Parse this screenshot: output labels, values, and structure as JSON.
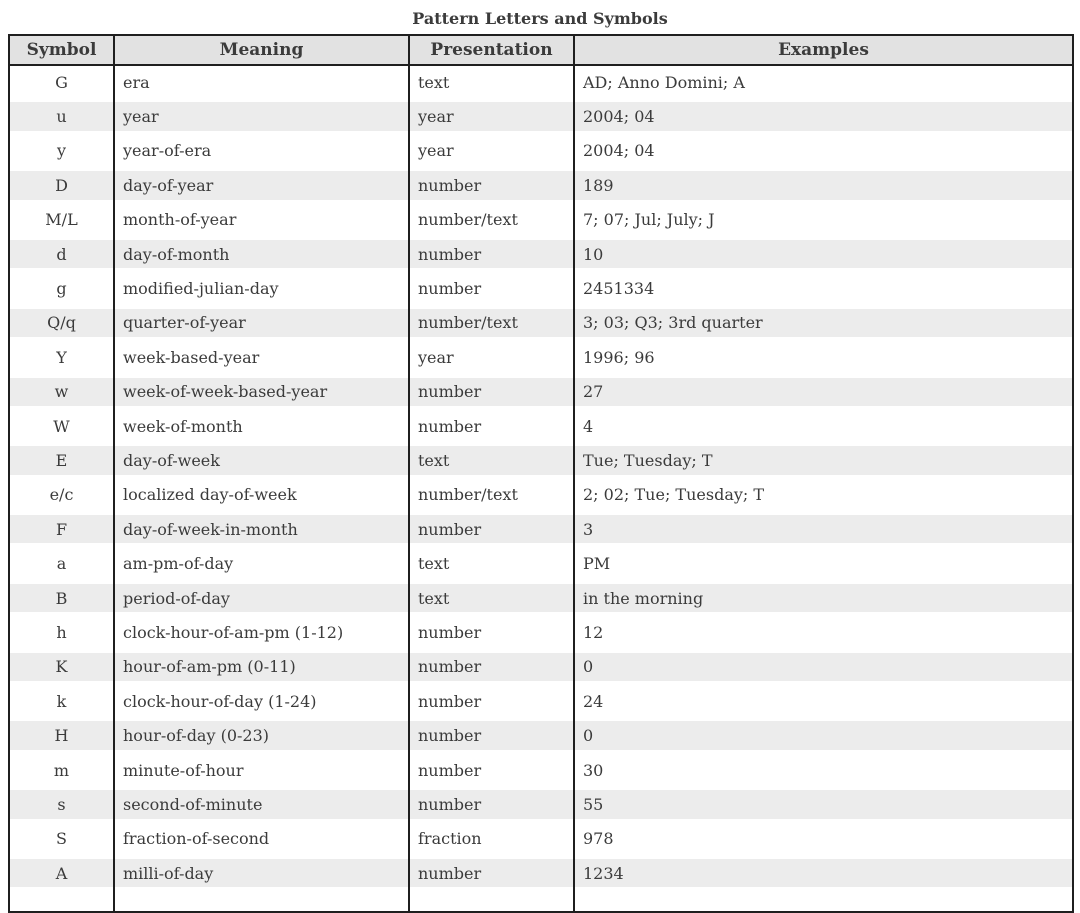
{
  "title": "Pattern Letters and Symbols",
  "colors": {
    "border": "#1f1f1f",
    "header_bg": "#e2e2e2",
    "alt_row_bg": "#ececec",
    "text": "#3b3b3b"
  },
  "table": {
    "columns": [
      "Symbol",
      "Meaning",
      "Presentation",
      "Examples"
    ],
    "rows": [
      {
        "symbol": "G",
        "meaning": "era",
        "presentation": "text",
        "examples": "AD; Anno Domini; A"
      },
      {
        "symbol": "u",
        "meaning": "year",
        "presentation": "year",
        "examples": "2004; 04"
      },
      {
        "symbol": "y",
        "meaning": "year-of-era",
        "presentation": "year",
        "examples": "2004; 04"
      },
      {
        "symbol": "D",
        "meaning": "day-of-year",
        "presentation": "number",
        "examples": "189"
      },
      {
        "symbol": "M/L",
        "meaning": "month-of-year",
        "presentation": "number/text",
        "examples": "7; 07; Jul; July; J"
      },
      {
        "symbol": "d",
        "meaning": "day-of-month",
        "presentation": "number",
        "examples": "10"
      },
      {
        "symbol": "g",
        "meaning": "modified-julian-day",
        "presentation": "number",
        "examples": "2451334"
      },
      {
        "symbol": "Q/q",
        "meaning": "quarter-of-year",
        "presentation": "number/text",
        "examples": "3; 03; Q3; 3rd quarter"
      },
      {
        "symbol": "Y",
        "meaning": "week-based-year",
        "presentation": "year",
        "examples": "1996; 96"
      },
      {
        "symbol": "w",
        "meaning": "week-of-week-based-year",
        "presentation": "number",
        "examples": "27"
      },
      {
        "symbol": "W",
        "meaning": "week-of-month",
        "presentation": "number",
        "examples": "4"
      },
      {
        "symbol": "E",
        "meaning": "day-of-week",
        "presentation": "text",
        "examples": "Tue; Tuesday; T"
      },
      {
        "symbol": "e/c",
        "meaning": "localized day-of-week",
        "presentation": "number/text",
        "examples": "2; 02; Tue; Tuesday; T"
      },
      {
        "symbol": "F",
        "meaning": "day-of-week-in-month",
        "presentation": "number",
        "examples": "3"
      },
      {
        "symbol": "a",
        "meaning": "am-pm-of-day",
        "presentation": "text",
        "examples": "PM"
      },
      {
        "symbol": "B",
        "meaning": "period-of-day",
        "presentation": "text",
        "examples": "in the morning"
      },
      {
        "symbol": "h",
        "meaning": "clock-hour-of-am-pm (1-12)",
        "presentation": "number",
        "examples": "12"
      },
      {
        "symbol": "K",
        "meaning": "hour-of-am-pm (0-11)",
        "presentation": "number",
        "examples": "0"
      },
      {
        "symbol": "k",
        "meaning": "clock-hour-of-day (1-24)",
        "presentation": "number",
        "examples": "24"
      },
      {
        "symbol": "H",
        "meaning": "hour-of-day (0-23)",
        "presentation": "number",
        "examples": "0"
      },
      {
        "symbol": "m",
        "meaning": "minute-of-hour",
        "presentation": "number",
        "examples": "30"
      },
      {
        "symbol": "s",
        "meaning": "second-of-minute",
        "presentation": "number",
        "examples": "55"
      },
      {
        "symbol": "S",
        "meaning": "fraction-of-second",
        "presentation": "fraction",
        "examples": "978"
      },
      {
        "symbol": "A",
        "meaning": "milli-of-day",
        "presentation": "number",
        "examples": "1234"
      }
    ]
  }
}
